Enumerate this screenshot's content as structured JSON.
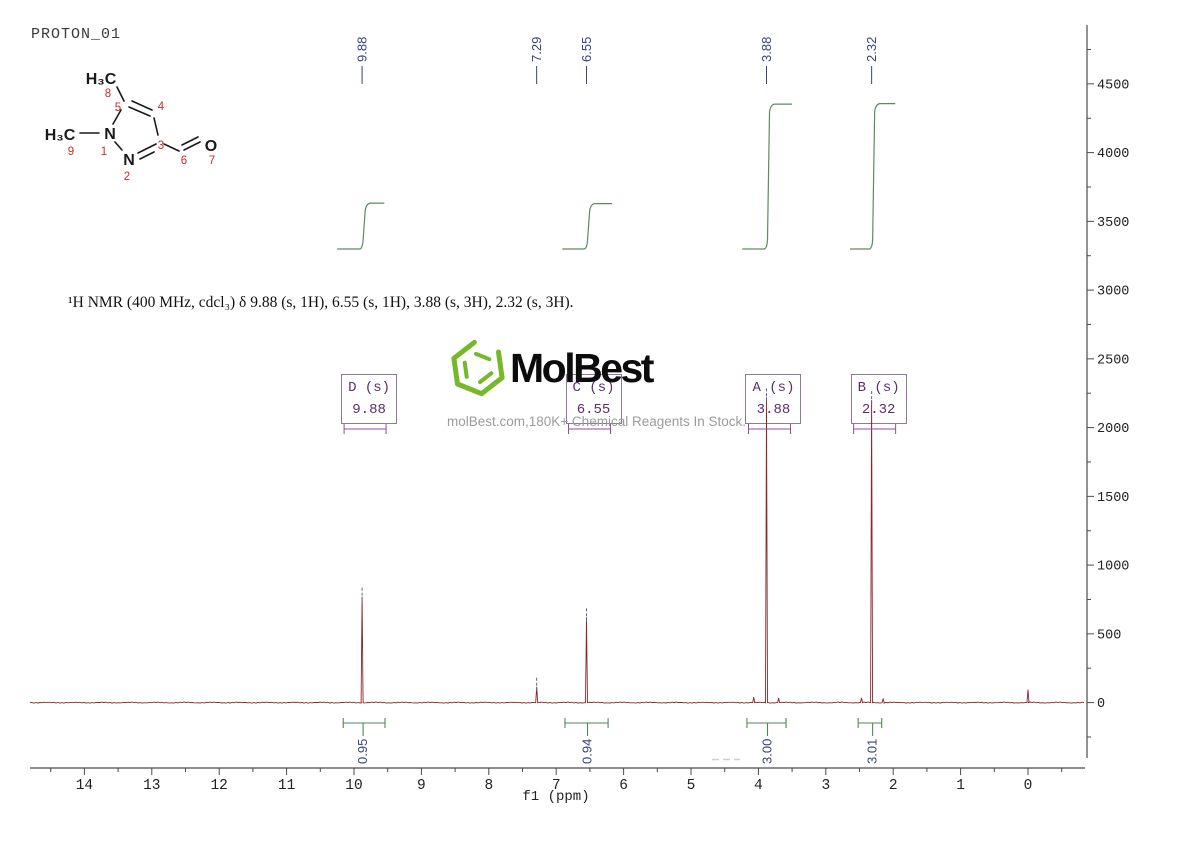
{
  "header": {
    "experiment_title": "PROTON_01"
  },
  "annotation_line": "¹H NMR (400 MHz, cdcl₃) δ 9.88 (s, 1H), 6.55 (s, 1H), 3.88 (s, 3H), 2.32 (s, 3H).",
  "watermark": {
    "brand": "MolBest",
    "tagline": "molBest.com,180K+ Chemical Reagents In Stock.",
    "logo_color": "#76b82a"
  },
  "molecule": {
    "labels": {
      "methyl_top": "H₃C",
      "methyl_left": "H₃C",
      "n1": "N",
      "n2": "N",
      "o": "O",
      "num1": "1",
      "num2": "2",
      "num3": "3",
      "num4": "4",
      "num5": "5",
      "num6": "6",
      "num7": "7",
      "num8": "8",
      "num9": "9"
    }
  },
  "chart_data": {
    "type": "line",
    "title": "PROTON_01",
    "xlabel": "f1 (ppm)",
    "x_axis": {
      "min": -0.85,
      "max": 14.8,
      "inverted": true,
      "major_tick": 1,
      "minor_tick": 0.5,
      "tick_labels": [
        14,
        13,
        12,
        11,
        10,
        9,
        8,
        7,
        6,
        5,
        4,
        3,
        2,
        1,
        0
      ]
    },
    "y_axis": {
      "min": -400,
      "max": 4930,
      "major_tick": 500,
      "minor_tick": 250,
      "tick_labels": [
        4500,
        4000,
        3500,
        3000,
        2500,
        2000,
        1500,
        1000,
        500,
        0
      ]
    },
    "grid": false,
    "trace_color": "#8a2828",
    "peaks": [
      {
        "ppm": 9.88,
        "intensity": 770,
        "label": "9.88"
      },
      {
        "ppm": 7.29,
        "intensity": 115,
        "label": "7.29"
      },
      {
        "ppm": 6.55,
        "intensity": 620,
        "label": "6.55"
      },
      {
        "ppm": 3.88,
        "intensity": 2220,
        "label": "3.88"
      },
      {
        "ppm": 2.32,
        "intensity": 2200,
        "label": "2.32"
      },
      {
        "ppm": 0.0,
        "intensity": 95,
        "label": null
      }
    ],
    "minor_peaks": [
      {
        "ppm": 4.07,
        "intensity": 40
      },
      {
        "ppm": 3.7,
        "intensity": 35
      },
      {
        "ppm": 2.47,
        "intensity": 35
      },
      {
        "ppm": 2.15,
        "intensity": 30
      }
    ],
    "multiplets": [
      {
        "id": "D",
        "type": "s",
        "shift": "9.88",
        "ppm": 9.88
      },
      {
        "id": "C",
        "type": "s",
        "shift": "6.55",
        "ppm": 6.55
      },
      {
        "id": "A",
        "type": "s",
        "shift": "3.88",
        "ppm": 3.88
      },
      {
        "id": "B",
        "type": "s",
        "shift": "2.32",
        "ppm": 2.32
      }
    ],
    "integrals": [
      {
        "value": "0.95",
        "ppm_from": 10.16,
        "ppm_to": 9.54,
        "curve_ppm_from": 10.25,
        "curve_ppm_to": 9.55
      },
      {
        "value": "0.94",
        "ppm_from": 6.87,
        "ppm_to": 6.23,
        "curve_ppm_from": 6.91,
        "curve_ppm_to": 6.17
      },
      {
        "value": "3.00",
        "ppm_from": 4.17,
        "ppm_to": 3.59,
        "curve_ppm_from": 4.24,
        "curve_ppm_to": 3.5
      },
      {
        "value": "3.01",
        "ppm_from": 2.52,
        "ppm_to": 2.17,
        "curve_ppm_from": 2.64,
        "curve_ppm_to": 1.97
      }
    ]
  }
}
